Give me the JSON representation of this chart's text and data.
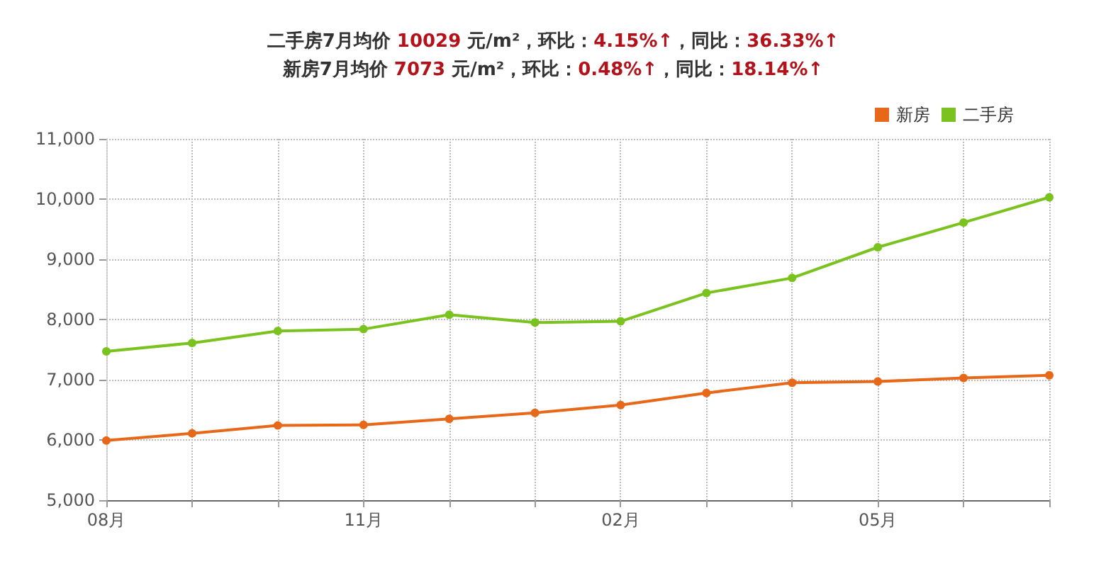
{
  "chart_data": {
    "type": "line",
    "title": "二手房7月均价 10029 元/m²，环比：4.15%↑，同比：36.33%↑",
    "subtitle": "新房7月均价 7073 元/m²，环比：0.48%↑，同比：18.14%↑",
    "categories": [
      "08月",
      null,
      null,
      "11月",
      null,
      null,
      "02月",
      null,
      null,
      "05月",
      null,
      null
    ],
    "series": [
      {
        "name": "新房",
        "color": "#e8681a",
        "values": [
          5990,
          6110,
          6240,
          6250,
          6350,
          6450,
          6580,
          6780,
          6950,
          6970,
          7030,
          7073
        ]
      },
      {
        "name": "二手房",
        "color": "#7ac21e",
        "values": [
          7470,
          7610,
          7810,
          7840,
          8080,
          7950,
          7970,
          8440,
          8690,
          9200,
          9610,
          10029
        ]
      }
    ],
    "ylim": [
      5000,
      11000
    ],
    "yticks": [
      {
        "value": 5000,
        "label": "5,000"
      },
      {
        "value": 6000,
        "label": "6,000"
      },
      {
        "value": 7000,
        "label": "7,000"
      },
      {
        "value": 8000,
        "label": "8,000"
      },
      {
        "value": 9000,
        "label": "9,000"
      },
      {
        "value": 10000,
        "label": "10,000"
      },
      {
        "value": 11000,
        "label": "11,000"
      }
    ],
    "grid": true,
    "legend": "top right",
    "marker": "circle",
    "line_style": "solid"
  }
}
